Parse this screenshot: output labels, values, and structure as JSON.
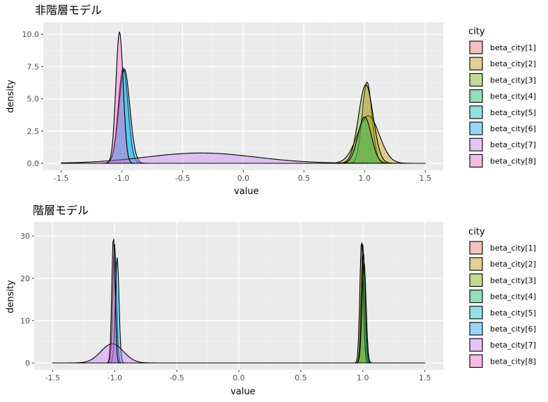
{
  "legend": {
    "title": "city",
    "entries": [
      "beta_city[1]",
      "beta_city[2]",
      "beta_city[3]",
      "beta_city[4]",
      "beta_city[5]",
      "beta_city[6]",
      "beta_city[7]",
      "beta_city[8]"
    ],
    "colors": [
      "#F8766D",
      "#CD9600",
      "#7CAE00",
      "#00BE67",
      "#00BFC4",
      "#00A9FF",
      "#C77CFF",
      "#FF61CC"
    ]
  },
  "chart_data": [
    {
      "type": "area",
      "title": "非階層モデル",
      "xlabel": "value",
      "ylabel": "density",
      "xlim": [
        -1.5,
        1.5
      ],
      "ylim": [
        0,
        10.5
      ],
      "x_ticks": [
        "-1.5",
        "-1.0",
        "-0.5",
        "0.0",
        "0.5",
        "1.0",
        "1.5"
      ],
      "y_ticks": [
        "0.0",
        "2.5",
        "5.0",
        "7.5",
        "10.0"
      ],
      "grid": true,
      "legend_position": "right",
      "series": [
        {
          "name": "beta_city[1]",
          "mu": 1.02,
          "sigma": 0.04,
          "peak": 6.3
        },
        {
          "name": "beta_city[2]",
          "mu": 1.03,
          "sigma": 0.09,
          "peak": 3.7
        },
        {
          "name": "beta_city[3]",
          "mu": 1.01,
          "sigma": 0.06,
          "peak": 6.1
        },
        {
          "name": "beta_city[4]",
          "mu": 1.0,
          "sigma": 0.055,
          "peak": 3.6
        },
        {
          "name": "beta_city[5]",
          "mu": -0.99,
          "sigma": 0.04,
          "peak": 7.4
        },
        {
          "name": "beta_city[6]",
          "mu": -0.98,
          "sigma": 0.045,
          "peak": 7.3
        },
        {
          "name": "beta_city[7]",
          "mu": -0.35,
          "sigma": 0.45,
          "peak": 0.8
        },
        {
          "name": "beta_city[8]",
          "mu": -1.02,
          "sigma": 0.03,
          "peak": 10.2
        }
      ]
    },
    {
      "type": "area",
      "title": "階層モデル",
      "xlabel": "value",
      "ylabel": "density",
      "xlim": [
        -1.5,
        1.5
      ],
      "ylim": [
        0,
        32
      ],
      "x_ticks": [
        "-1.5",
        "-1.0",
        "-0.5",
        "0.0",
        "0.5",
        "1.0",
        "1.5"
      ],
      "y_ticks": [
        "0",
        "10",
        "20",
        "30"
      ],
      "grid": true,
      "legend_position": "right",
      "series": [
        {
          "name": "beta_city[1]",
          "mu": 1.0,
          "sigma": 0.014,
          "peak": 28
        },
        {
          "name": "beta_city[2]",
          "mu": 1.005,
          "sigma": 0.015,
          "peak": 26
        },
        {
          "name": "beta_city[3]",
          "mu": 0.99,
          "sigma": 0.014,
          "peak": 29
        },
        {
          "name": "beta_city[4]",
          "mu": 1.01,
          "sigma": 0.016,
          "peak": 24
        },
        {
          "name": "beta_city[5]",
          "mu": -1.0,
          "sigma": 0.014,
          "peak": 28
        },
        {
          "name": "beta_city[6]",
          "mu": -0.98,
          "sigma": 0.015,
          "peak": 25
        },
        {
          "name": "beta_city[7]",
          "mu": -1.02,
          "sigma": 0.09,
          "peak": 4.5
        },
        {
          "name": "beta_city[8]",
          "mu": -1.01,
          "sigma": 0.013,
          "peak": 30
        }
      ]
    }
  ]
}
